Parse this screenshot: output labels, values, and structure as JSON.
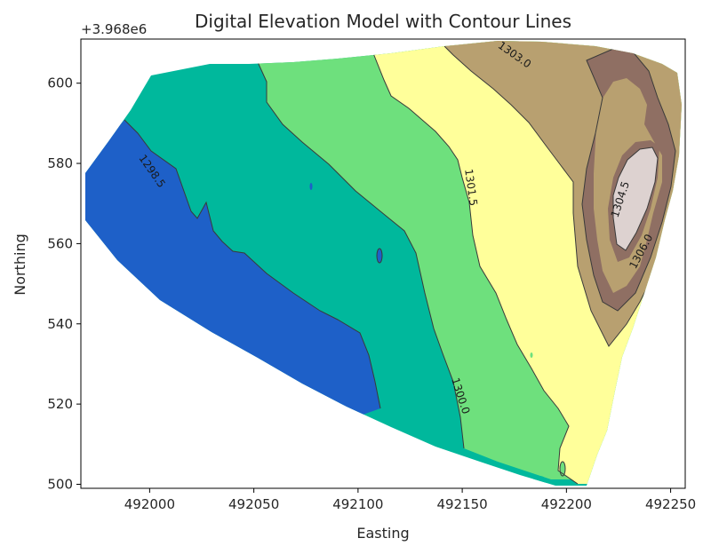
{
  "chart_data": {
    "type": "contour",
    "title": "Digital Elevation Model with Contour Lines",
    "xlabel": "Easting",
    "ylabel": "Northing",
    "y_offset_text": "+3.968e6",
    "xlim": [
      491967,
      492257
    ],
    "ylim": [
      499,
      611
    ],
    "x_ticks": [
      492000,
      492050,
      492100,
      492150,
      492200,
      492250
    ],
    "x_tick_labels": [
      "492000",
      "492050",
      "492100",
      "492150",
      "492200",
      "492250"
    ],
    "y_ticks": [
      500,
      520,
      540,
      560,
      580,
      600
    ],
    "y_tick_labels": [
      "500",
      "520",
      "540",
      "560",
      "580",
      "600"
    ],
    "contour_labels": [
      {
        "text": "1298.5",
        "x": 492001,
        "y": 578,
        "rotation": 55
      },
      {
        "text": "1300.0",
        "x": 492149,
        "y": 522,
        "rotation": 72
      },
      {
        "text": "1301.5",
        "x": 492154,
        "y": 574,
        "rotation": 82
      },
      {
        "text": "1303.0",
        "x": 492175,
        "y": 607,
        "rotation": 35
      },
      {
        "text": "1304.5",
        "x": 492226,
        "y": 571,
        "rotation": -72
      },
      {
        "text": "1306.0",
        "x": 492236,
        "y": 558,
        "rotation": -62
      }
    ],
    "bands": [
      {
        "range": "<1298.5",
        "color": "#1e60c8"
      },
      {
        "range": "1298.5-1300.0",
        "color": "#00b89c"
      },
      {
        "range": "1300.0-1301.5",
        "color": "#6ee07d"
      },
      {
        "range": "1301.5-1303.0",
        "color": "#ffff9a"
      },
      {
        "range": "1303.0-1304.5",
        "color": "#b8a070"
      },
      {
        "range": "1304.5-1306.0",
        "color": "#8f6f63"
      },
      {
        "range": ">1306.0",
        "color": "#ddd2d0"
      }
    ]
  }
}
